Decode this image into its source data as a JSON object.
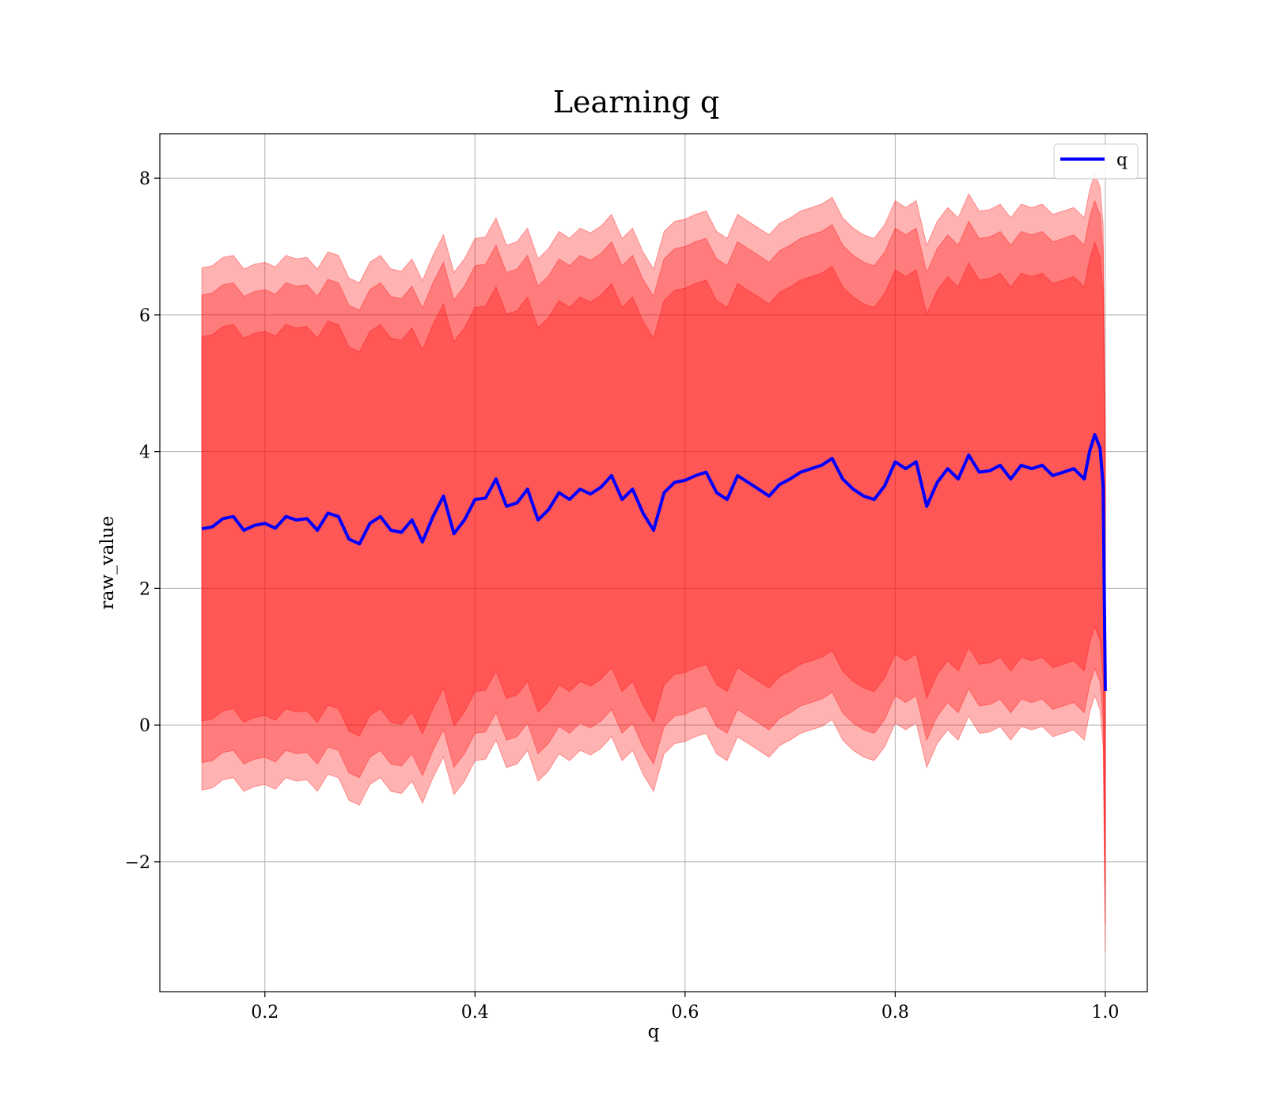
{
  "chart_data": {
    "type": "line",
    "title": "Learning q",
    "xlabel": "q",
    "ylabel": "raw_value",
    "xlim": [
      0.1,
      1.04
    ],
    "ylim": [
      -3.9,
      8.65
    ],
    "x_ticks": [
      0.2,
      0.4,
      0.6,
      0.8,
      1.0
    ],
    "x_tick_labels": [
      "0.2",
      "0.4",
      "0.6",
      "0.8",
      "1.0"
    ],
    "y_ticks": [
      -2,
      0,
      2,
      4,
      6,
      8
    ],
    "y_tick_labels": [
      "−2",
      "0",
      "2",
      "4",
      "6",
      "8"
    ],
    "grid": true,
    "legend": {
      "placement": "upper right",
      "entries": [
        "q"
      ]
    },
    "colors": {
      "line": "#0000ff",
      "band": "#ff0000",
      "grid": "#b0b0b0"
    },
    "band_half_widths": [
      2.81,
      3.42,
      3.82
    ],
    "band_opacities": [
      0.3,
      0.3,
      0.3
    ],
    "series": [
      {
        "name": "q",
        "x": [
          0.14,
          0.15,
          0.16,
          0.17,
          0.18,
          0.19,
          0.2,
          0.21,
          0.22,
          0.23,
          0.24,
          0.25,
          0.26,
          0.27,
          0.28,
          0.29,
          0.3,
          0.31,
          0.32,
          0.33,
          0.34,
          0.35,
          0.36,
          0.37,
          0.38,
          0.39,
          0.4,
          0.41,
          0.42,
          0.43,
          0.44,
          0.45,
          0.46,
          0.47,
          0.48,
          0.49,
          0.5,
          0.51,
          0.52,
          0.53,
          0.54,
          0.55,
          0.56,
          0.57,
          0.58,
          0.59,
          0.6,
          0.61,
          0.62,
          0.63,
          0.64,
          0.65,
          0.66,
          0.67,
          0.68,
          0.69,
          0.7,
          0.71,
          0.72,
          0.73,
          0.74,
          0.75,
          0.76,
          0.77,
          0.78,
          0.79,
          0.8,
          0.81,
          0.82,
          0.83,
          0.84,
          0.85,
          0.86,
          0.87,
          0.88,
          0.89,
          0.9,
          0.91,
          0.92,
          0.93,
          0.94,
          0.95,
          0.96,
          0.97,
          0.98,
          0.985,
          0.99,
          0.995,
          0.998,
          1.0
        ],
        "y": [
          2.87,
          2.9,
          3.02,
          3.05,
          2.85,
          2.92,
          2.95,
          2.88,
          3.05,
          3.0,
          3.02,
          2.85,
          3.1,
          3.05,
          2.72,
          2.65,
          2.95,
          3.05,
          2.85,
          2.82,
          3.0,
          2.68,
          3.05,
          3.35,
          2.8,
          3.0,
          3.3,
          3.32,
          3.6,
          3.2,
          3.25,
          3.45,
          3.0,
          3.15,
          3.4,
          3.3,
          3.45,
          3.38,
          3.48,
          3.65,
          3.3,
          3.45,
          3.1,
          2.85,
          3.4,
          3.55,
          3.58,
          3.65,
          3.7,
          3.4,
          3.3,
          3.65,
          3.55,
          3.45,
          3.35,
          3.52,
          3.6,
          3.7,
          3.75,
          3.8,
          3.9,
          3.6,
          3.45,
          3.35,
          3.3,
          3.5,
          3.85,
          3.75,
          3.85,
          3.2,
          3.55,
          3.75,
          3.6,
          3.95,
          3.7,
          3.72,
          3.8,
          3.6,
          3.8,
          3.75,
          3.8,
          3.65,
          3.7,
          3.75,
          3.6,
          4.0,
          4.25,
          4.05,
          3.5,
          0.5
        ]
      }
    ]
  }
}
